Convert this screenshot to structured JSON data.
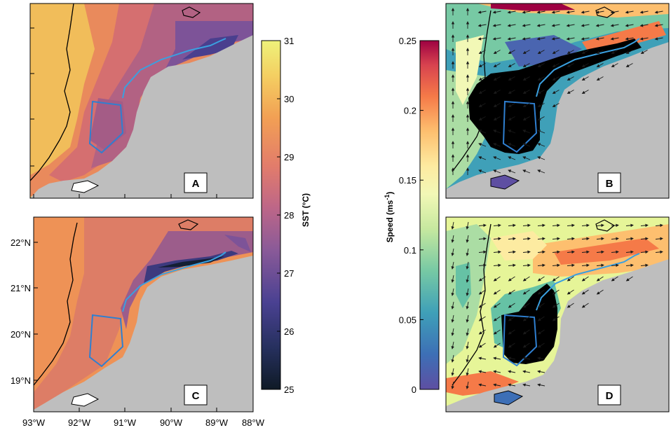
{
  "panels": [
    {
      "label": "A"
    },
    {
      "label": "B"
    },
    {
      "label": "C"
    },
    {
      "label": "D"
    }
  ],
  "axes": {
    "lat_labels": [
      "22°N",
      "21°N",
      "20°N",
      "19°N"
    ],
    "lon_labels": [
      "93°W",
      "92°W",
      "91°W",
      "90°W",
      "89°W",
      "88°W"
    ]
  },
  "sst_colorbar": {
    "title": "SST (°C)",
    "ticks": [
      "31",
      "30",
      "29",
      "28",
      "27",
      "26",
      "25"
    ],
    "min": 25,
    "max": 31,
    "colors": [
      "#0f1a26",
      "#1d2a4a",
      "#3b3a8a",
      "#6a4f9e",
      "#9a5e92",
      "#c46a86",
      "#e67d6a",
      "#f29a52",
      "#f4bd58",
      "#f3de6a",
      "#eef27a"
    ]
  },
  "speed_colorbar": {
    "title": "Speed (ms",
    "title_sup": "-1",
    "title_close": ")",
    "ticks": [
      "0.25",
      "0.2",
      "0.15",
      "0.1",
      "0.05",
      "0"
    ],
    "min": 0,
    "max": 0.25,
    "colors": [
      "#5e4fa2",
      "#3d6fb6",
      "#3288bd",
      "#66c2a5",
      "#abdda4",
      "#e6f598",
      "#ffffbf",
      "#fee08b",
      "#fdae61",
      "#f46d43",
      "#d53e4f",
      "#9e0142"
    ]
  },
  "colors": {
    "land": "#bebebe",
    "coast": "#000000",
    "transect": "#3aa0e0",
    "polygon": "#2f7fd0",
    "warm_sst": "#f1b055",
    "mid_sst": "#e27f5f",
    "cool_sst": "#7a4f97",
    "cold_sst": "#2b2a5a"
  }
}
